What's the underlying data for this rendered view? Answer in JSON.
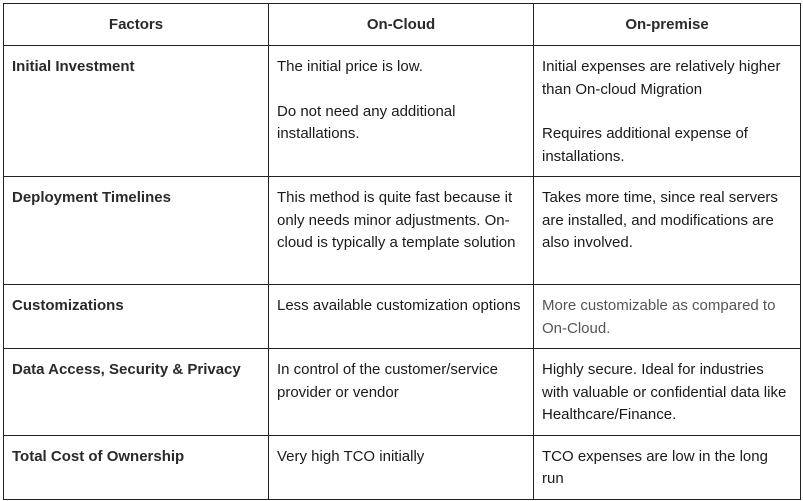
{
  "table": {
    "headers": [
      "Factors",
      "On-Cloud",
      "On-premise"
    ],
    "rows": [
      {
        "factor": "Initial Investment",
        "on_cloud": [
          "The initial price is low.",
          "Do not need any additional installations."
        ],
        "on_premise": [
          "Initial expenses are relatively higher than On-cloud Migration",
          "Requires additional expense of installations."
        ]
      },
      {
        "factor": "Deployment Timelines",
        "on_cloud": [
          "This method is quite fast because it only needs minor adjustments. On-cloud is typically a template solution"
        ],
        "on_premise": [
          "Takes more time, since real servers are installed, and modifications are also involved."
        ]
      },
      {
        "factor": "Customizations",
        "on_cloud": [
          "Less available customization options"
        ],
        "on_premise": [
          "More customizable as compared to On-Cloud."
        ]
      },
      {
        "factor": "Data Access, Security & Privacy",
        "on_cloud": [
          "In control of the customer/service provider or vendor"
        ],
        "on_premise": [
          "Highly secure. Ideal for industries with valuable or confidential data like Healthcare/Finance."
        ]
      },
      {
        "factor": "Total Cost of Ownership",
        "on_cloud": [
          "Very high TCO initially"
        ],
        "on_premise": [
          "TCO expenses are low in the long run"
        ]
      }
    ]
  }
}
